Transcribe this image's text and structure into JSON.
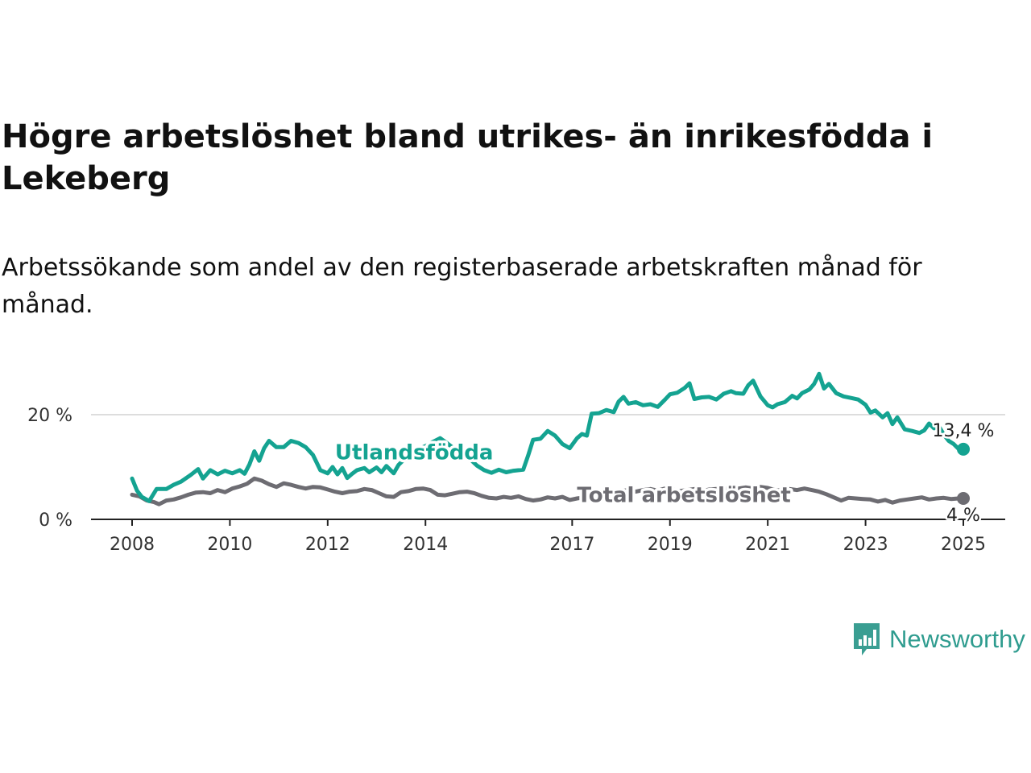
{
  "title": "Högre arbetslöshet bland utrikes- än inrikesfödda i Lekeberg",
  "subtitle": "Arbetssökande som andel av den registerbaserade arbetskraften månad för månad.",
  "brand": {
    "name": "Newsworthy",
    "icon": "newsworthy-logo-icon",
    "color": "#3a9e92"
  },
  "chart_data": {
    "type": "line",
    "xlim": [
      2008,
      2025.1
    ],
    "ylim": [
      0,
      30
    ],
    "y_ticks": [
      {
        "value": 0,
        "label": "0 %"
      },
      {
        "value": 20,
        "label": "20 %"
      }
    ],
    "x_ticks": [
      {
        "value": 2008,
        "label": "2008"
      },
      {
        "value": 2010,
        "label": "2010"
      },
      {
        "value": 2012,
        "label": "2012"
      },
      {
        "value": 2014,
        "label": "2014"
      },
      {
        "value": 2017,
        "label": "2017"
      },
      {
        "value": 2019,
        "label": "2019"
      },
      {
        "value": 2021,
        "label": "2021"
      },
      {
        "value": 2023,
        "label": "2023"
      },
      {
        "value": 2025,
        "label": "2025"
      }
    ],
    "grid": true,
    "series": [
      {
        "name": "Utlandsfödda",
        "color": "#14a391",
        "end_label": "13,4 %",
        "label_at": [
          2012.15,
          11.5
        ],
        "points": [
          [
            2008.0,
            7.8
          ],
          [
            2008.1,
            5.5
          ],
          [
            2008.2,
            4.3
          ],
          [
            2008.35,
            3.5
          ],
          [
            2008.5,
            5.8
          ],
          [
            2008.7,
            5.8
          ],
          [
            2008.85,
            6.6
          ],
          [
            2009.0,
            7.2
          ],
          [
            2009.2,
            8.5
          ],
          [
            2009.35,
            9.6
          ],
          [
            2009.45,
            7.8
          ],
          [
            2009.6,
            9.4
          ],
          [
            2009.75,
            8.6
          ],
          [
            2009.9,
            9.3
          ],
          [
            2010.05,
            8.8
          ],
          [
            2010.2,
            9.4
          ],
          [
            2010.3,
            8.7
          ],
          [
            2010.4,
            10.5
          ],
          [
            2010.5,
            13.0
          ],
          [
            2010.6,
            11.2
          ],
          [
            2010.7,
            13.6
          ],
          [
            2010.8,
            15.0
          ],
          [
            2010.95,
            13.8
          ],
          [
            2011.1,
            13.8
          ],
          [
            2011.25,
            15.0
          ],
          [
            2011.4,
            14.6
          ],
          [
            2011.55,
            13.8
          ],
          [
            2011.7,
            12.3
          ],
          [
            2011.85,
            9.4
          ],
          [
            2012.0,
            8.8
          ],
          [
            2012.1,
            10.0
          ],
          [
            2012.2,
            8.6
          ],
          [
            2012.3,
            9.8
          ],
          [
            2012.4,
            7.9
          ],
          [
            2012.5,
            8.7
          ],
          [
            2012.6,
            9.4
          ],
          [
            2012.75,
            9.8
          ],
          [
            2012.85,
            9.0
          ],
          [
            2013.0,
            9.9
          ],
          [
            2013.1,
            9.0
          ],
          [
            2013.2,
            10.2
          ],
          [
            2013.35,
            8.8
          ],
          [
            2013.45,
            10.4
          ],
          [
            2013.6,
            11.8
          ],
          [
            2013.75,
            12.5
          ],
          [
            2013.9,
            13.6
          ],
          [
            2014.0,
            14.0
          ],
          [
            2014.15,
            14.8
          ],
          [
            2014.3,
            15.5
          ],
          [
            2014.45,
            14.5
          ],
          [
            2014.6,
            13.4
          ],
          [
            2014.75,
            12.8
          ],
          [
            2014.9,
            11.6
          ],
          [
            2015.05,
            10.3
          ],
          [
            2015.2,
            9.4
          ],
          [
            2015.35,
            8.9
          ],
          [
            2015.5,
            9.5
          ],
          [
            2015.65,
            9.0
          ],
          [
            2015.8,
            9.3
          ],
          [
            2016.0,
            9.5
          ],
          [
            2016.1,
            12.2
          ],
          [
            2016.2,
            15.2
          ],
          [
            2016.35,
            15.4
          ],
          [
            2016.5,
            16.9
          ],
          [
            2016.65,
            16.0
          ],
          [
            2016.8,
            14.4
          ],
          [
            2016.95,
            13.6
          ],
          [
            2017.1,
            15.5
          ],
          [
            2017.2,
            16.3
          ],
          [
            2017.3,
            16.0
          ],
          [
            2017.4,
            20.2
          ],
          [
            2017.55,
            20.3
          ],
          [
            2017.7,
            20.9
          ],
          [
            2017.85,
            20.5
          ],
          [
            2017.95,
            22.5
          ],
          [
            2018.05,
            23.4
          ],
          [
            2018.15,
            22.1
          ],
          [
            2018.3,
            22.4
          ],
          [
            2018.45,
            21.8
          ],
          [
            2018.6,
            22.0
          ],
          [
            2018.75,
            21.5
          ],
          [
            2018.9,
            22.9
          ],
          [
            2019.0,
            23.9
          ],
          [
            2019.15,
            24.2
          ],
          [
            2019.3,
            25.1
          ],
          [
            2019.4,
            26.0
          ],
          [
            2019.5,
            23.0
          ],
          [
            2019.65,
            23.3
          ],
          [
            2019.8,
            23.4
          ],
          [
            2019.95,
            22.9
          ],
          [
            2020.1,
            24.0
          ],
          [
            2020.25,
            24.5
          ],
          [
            2020.35,
            24.1
          ],
          [
            2020.5,
            24.0
          ],
          [
            2020.6,
            25.6
          ],
          [
            2020.7,
            26.5
          ],
          [
            2020.85,
            23.5
          ],
          [
            2021.0,
            21.8
          ],
          [
            2021.1,
            21.4
          ],
          [
            2021.2,
            22.0
          ],
          [
            2021.35,
            22.4
          ],
          [
            2021.5,
            23.6
          ],
          [
            2021.6,
            23.1
          ],
          [
            2021.7,
            24.1
          ],
          [
            2021.85,
            24.8
          ],
          [
            2021.95,
            25.9
          ],
          [
            2022.05,
            27.8
          ],
          [
            2022.15,
            25.0
          ],
          [
            2022.25,
            25.9
          ],
          [
            2022.4,
            24.1
          ],
          [
            2022.55,
            23.5
          ],
          [
            2022.7,
            23.2
          ],
          [
            2022.85,
            22.9
          ],
          [
            2023.0,
            21.9
          ],
          [
            2023.1,
            20.4
          ],
          [
            2023.2,
            20.8
          ],
          [
            2023.35,
            19.5
          ],
          [
            2023.45,
            20.3
          ],
          [
            2023.55,
            18.2
          ],
          [
            2023.65,
            19.5
          ],
          [
            2023.8,
            17.2
          ],
          [
            2023.95,
            16.9
          ],
          [
            2024.1,
            16.5
          ],
          [
            2024.2,
            17.0
          ],
          [
            2024.3,
            18.3
          ],
          [
            2024.4,
            17.4
          ],
          [
            2024.5,
            17.8
          ],
          [
            2024.6,
            16.2
          ],
          [
            2024.7,
            15.0
          ],
          [
            2024.8,
            14.4
          ],
          [
            2024.9,
            13.5
          ],
          [
            2025.0,
            13.4
          ]
        ]
      },
      {
        "name": "Total arbetslöshet",
        "color": "#6d6c72",
        "end_label": "4 %",
        "label_at": [
          2017.1,
          3.3
        ],
        "points": [
          [
            2008.0,
            4.7
          ],
          [
            2008.15,
            4.4
          ],
          [
            2008.3,
            3.6
          ],
          [
            2008.45,
            3.3
          ],
          [
            2008.55,
            2.9
          ],
          [
            2008.7,
            3.6
          ],
          [
            2008.85,
            3.8
          ],
          [
            2009.0,
            4.2
          ],
          [
            2009.15,
            4.7
          ],
          [
            2009.3,
            5.1
          ],
          [
            2009.45,
            5.2
          ],
          [
            2009.6,
            5.0
          ],
          [
            2009.75,
            5.6
          ],
          [
            2009.9,
            5.2
          ],
          [
            2010.05,
            5.9
          ],
          [
            2010.2,
            6.3
          ],
          [
            2010.35,
            6.8
          ],
          [
            2010.5,
            7.8
          ],
          [
            2010.65,
            7.4
          ],
          [
            2010.8,
            6.7
          ],
          [
            2010.95,
            6.2
          ],
          [
            2011.1,
            6.9
          ],
          [
            2011.25,
            6.6
          ],
          [
            2011.4,
            6.2
          ],
          [
            2011.55,
            5.9
          ],
          [
            2011.7,
            6.2
          ],
          [
            2011.85,
            6.1
          ],
          [
            2012.0,
            5.7
          ],
          [
            2012.15,
            5.3
          ],
          [
            2012.3,
            5.0
          ],
          [
            2012.45,
            5.3
          ],
          [
            2012.6,
            5.4
          ],
          [
            2012.75,
            5.8
          ],
          [
            2012.9,
            5.6
          ],
          [
            2013.05,
            5.0
          ],
          [
            2013.2,
            4.4
          ],
          [
            2013.35,
            4.3
          ],
          [
            2013.5,
            5.2
          ],
          [
            2013.65,
            5.4
          ],
          [
            2013.8,
            5.8
          ],
          [
            2013.95,
            5.9
          ],
          [
            2014.1,
            5.6
          ],
          [
            2014.25,
            4.7
          ],
          [
            2014.4,
            4.6
          ],
          [
            2014.55,
            4.9
          ],
          [
            2014.7,
            5.2
          ],
          [
            2014.85,
            5.3
          ],
          [
            2015.0,
            5.0
          ],
          [
            2015.15,
            4.5
          ],
          [
            2015.3,
            4.1
          ],
          [
            2015.45,
            4.0
          ],
          [
            2015.6,
            4.3
          ],
          [
            2015.75,
            4.1
          ],
          [
            2015.9,
            4.4
          ],
          [
            2016.05,
            3.9
          ],
          [
            2016.2,
            3.6
          ],
          [
            2016.35,
            3.8
          ],
          [
            2016.5,
            4.2
          ],
          [
            2016.65,
            4.0
          ],
          [
            2016.8,
            4.3
          ],
          [
            2016.95,
            3.7
          ],
          [
            2017.1,
            4.0
          ],
          [
            2017.25,
            4.2
          ],
          [
            2017.4,
            3.9
          ],
          [
            2017.55,
            4.5
          ],
          [
            2017.7,
            4.8
          ],
          [
            2017.85,
            5.1
          ],
          [
            2018.0,
            5.4
          ],
          [
            2018.15,
            5.6
          ],
          [
            2018.3,
            5.3
          ],
          [
            2018.45,
            5.6
          ],
          [
            2018.6,
            5.8
          ],
          [
            2018.75,
            5.5
          ],
          [
            2018.9,
            5.9
          ],
          [
            2019.05,
            5.7
          ],
          [
            2019.2,
            5.4
          ],
          [
            2019.35,
            5.6
          ],
          [
            2019.5,
            5.8
          ],
          [
            2019.65,
            5.4
          ],
          [
            2019.8,
            5.7
          ],
          [
            2019.95,
            5.8
          ],
          [
            2020.1,
            6.0
          ],
          [
            2020.25,
            5.6
          ],
          [
            2020.4,
            5.9
          ],
          [
            2020.55,
            6.1
          ],
          [
            2020.7,
            5.9
          ],
          [
            2020.85,
            6.2
          ],
          [
            2021.0,
            6.0
          ],
          [
            2021.15,
            5.6
          ],
          [
            2021.3,
            5.5
          ],
          [
            2021.45,
            5.8
          ],
          [
            2021.6,
            5.6
          ],
          [
            2021.75,
            5.9
          ],
          [
            2021.9,
            5.6
          ],
          [
            2022.05,
            5.3
          ],
          [
            2022.2,
            4.8
          ],
          [
            2022.35,
            4.2
          ],
          [
            2022.5,
            3.6
          ],
          [
            2022.65,
            4.1
          ],
          [
            2022.8,
            4.0
          ],
          [
            2022.95,
            3.9
          ],
          [
            2023.1,
            3.8
          ],
          [
            2023.25,
            3.4
          ],
          [
            2023.4,
            3.7
          ],
          [
            2023.55,
            3.2
          ],
          [
            2023.7,
            3.6
          ],
          [
            2023.85,
            3.8
          ],
          [
            2024.0,
            4.0
          ],
          [
            2024.15,
            4.2
          ],
          [
            2024.3,
            3.8
          ],
          [
            2024.45,
            4.0
          ],
          [
            2024.6,
            4.1
          ],
          [
            2024.75,
            3.9
          ],
          [
            2024.9,
            4.0
          ],
          [
            2025.0,
            4.0
          ]
        ]
      }
    ]
  }
}
